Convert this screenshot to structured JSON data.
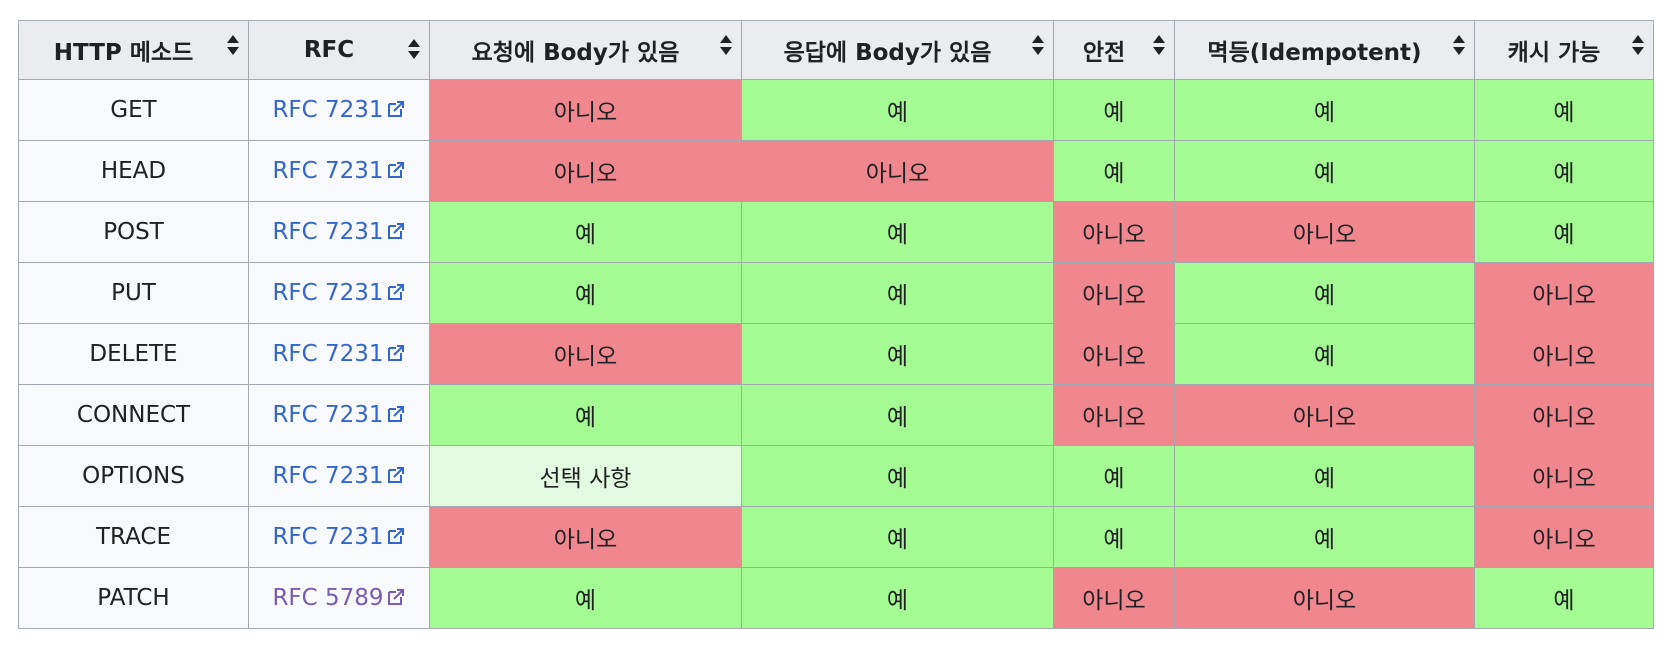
{
  "columns": [
    "HTTP 메소드",
    "RFC",
    "요청에 Body가 있음",
    "응답에 Body가 있음",
    "안전",
    "멱등(Idempotent)",
    "캐시 가능"
  ],
  "colors": {
    "yes": "#a4fa93",
    "no": "#f0878f",
    "optional": "#e2fbe0",
    "link": "#3366cc",
    "visited_link": "#795cb2"
  },
  "rows": [
    {
      "method": "GET",
      "rfc": "RFC 7231",
      "cells": [
        "아니오",
        "예",
        "예",
        "예",
        "예"
      ],
      "status": [
        "no",
        "yes",
        "yes",
        "yes",
        "yes"
      ]
    },
    {
      "method": "HEAD",
      "rfc": "RFC 7231",
      "cells": [
        "아니오",
        "아니오",
        "예",
        "예",
        "예"
      ],
      "status": [
        "no",
        "no",
        "yes",
        "yes",
        "yes"
      ]
    },
    {
      "method": "POST",
      "rfc": "RFC 7231",
      "cells": [
        "예",
        "예",
        "아니오",
        "아니오",
        "예"
      ],
      "status": [
        "yes",
        "yes",
        "no",
        "no",
        "yes"
      ]
    },
    {
      "method": "PUT",
      "rfc": "RFC 7231",
      "cells": [
        "예",
        "예",
        "아니오",
        "예",
        "아니오"
      ],
      "status": [
        "yes",
        "yes",
        "no",
        "yes",
        "no"
      ]
    },
    {
      "method": "DELETE",
      "rfc": "RFC 7231",
      "cells": [
        "아니오",
        "예",
        "아니오",
        "예",
        "아니오"
      ],
      "status": [
        "no",
        "yes",
        "no",
        "yes",
        "no"
      ]
    },
    {
      "method": "CONNECT",
      "rfc": "RFC 7231",
      "cells": [
        "예",
        "예",
        "아니오",
        "아니오",
        "아니오"
      ],
      "status": [
        "yes",
        "yes",
        "no",
        "no",
        "no"
      ]
    },
    {
      "method": "OPTIONS",
      "rfc": "RFC 7231",
      "cells": [
        "선택 사항",
        "예",
        "예",
        "예",
        "아니오"
      ],
      "status": [
        "opt",
        "yes",
        "yes",
        "yes",
        "no"
      ]
    },
    {
      "method": "TRACE",
      "rfc": "RFC 7231",
      "cells": [
        "아니오",
        "예",
        "예",
        "예",
        "아니오"
      ],
      "status": [
        "no",
        "yes",
        "yes",
        "yes",
        "no"
      ]
    },
    {
      "method": "PATCH",
      "rfc": "RFC 5789",
      "rfc_visited": true,
      "cells": [
        "예",
        "예",
        "아니오",
        "아니오",
        "예"
      ],
      "status": [
        "yes",
        "yes",
        "no",
        "no",
        "yes"
      ]
    }
  ]
}
